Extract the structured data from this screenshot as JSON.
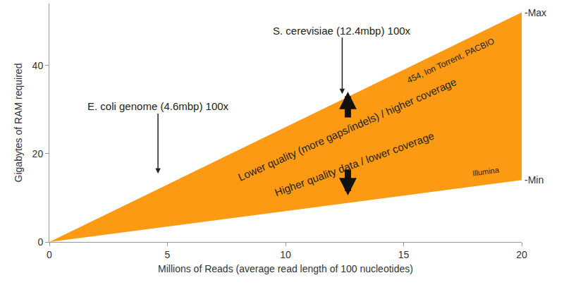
{
  "chart_data": {
    "type": "area",
    "x_label": "Millions of Reads (average read length of 100 nucleotides)",
    "y_label": "Gigabytes of RAM required",
    "x": [
      0,
      20
    ],
    "series": [
      {
        "name": "-Min",
        "values": [
          0,
          14
        ]
      },
      {
        "name": "-Max",
        "values": [
          0,
          52
        ]
      }
    ],
    "color": "#fd9a14",
    "xlim": [
      0,
      20
    ],
    "ylim": [
      0,
      54
    ],
    "xticks": [
      0,
      5,
      10,
      15,
      20
    ],
    "yticks": [
      0,
      20,
      40
    ],
    "grid": false,
    "annotations": [
      {
        "text": "E. coli genome (4.6mbp) 100x",
        "x": 4.6,
        "y": 15.5
      },
      {
        "text": "S. cerevisiae (12.4mbp) 100x",
        "x": 12.4,
        "y": 33.5
      }
    ],
    "band_labels": [
      {
        "text": "454, Ion Torrent, PACBIO",
        "x": 17.0,
        "y": 41.0
      },
      {
        "text": "Lower quality (more gaps/indels) / higher coverage",
        "x": 12.6,
        "y": 25.5
      },
      {
        "text": "Higher quality data / lower coverage",
        "x": 12.9,
        "y": 17.6
      },
      {
        "text": "Illumina",
        "x": 18.5,
        "y": 15.9
      }
    ]
  }
}
